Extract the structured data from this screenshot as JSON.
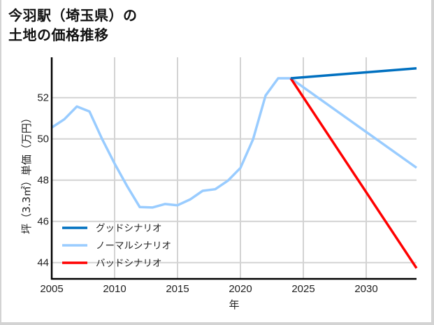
{
  "title": {
    "line1": "今羽駅（埼玉県）の",
    "line2": "土地の価格推移"
  },
  "colors": {
    "good": "#0070c0",
    "normal": "#99ccff",
    "bad": "#ff0000",
    "grid": "#d3d3d3",
    "axis": "#000000"
  },
  "chart_data": {
    "type": "line",
    "title": "今羽駅（埼玉県）の土地の価格推移",
    "xlabel": "年",
    "ylabel": "坪（3.3㎡）単価（万円）",
    "xlim": [
      2005,
      2034
    ],
    "ylim": [
      43.2,
      54.0
    ],
    "x_ticks": [
      2005,
      2010,
      2015,
      2020,
      2025,
      2030
    ],
    "y_ticks": [
      44,
      46,
      48,
      50,
      52
    ],
    "grid": true,
    "legend_position": "lower left",
    "series": [
      {
        "name": "グッドシナリオ",
        "color": "#0070c0",
        "x": [
          2024,
          2034
        ],
        "values": [
          52.94,
          53.42
        ]
      },
      {
        "name": "ノーマルシナリオ",
        "color": "#99ccff",
        "x": [
          2005,
          2006,
          2007,
          2008,
          2009,
          2010,
          2011,
          2012,
          2013,
          2014,
          2015,
          2016,
          2017,
          2018,
          2019,
          2020,
          2021,
          2022,
          2023,
          2024,
          2034
        ],
        "values": [
          50.55,
          50.95,
          51.57,
          51.33,
          50.0,
          48.8,
          47.7,
          46.69,
          46.67,
          46.84,
          46.78,
          47.06,
          47.48,
          47.56,
          47.97,
          48.59,
          49.97,
          52.1,
          52.94,
          52.94,
          48.6
        ]
      },
      {
        "name": "バッドシナリオ",
        "color": "#ff0000",
        "x": [
          2024,
          2034
        ],
        "values": [
          52.94,
          43.73
        ]
      }
    ]
  }
}
